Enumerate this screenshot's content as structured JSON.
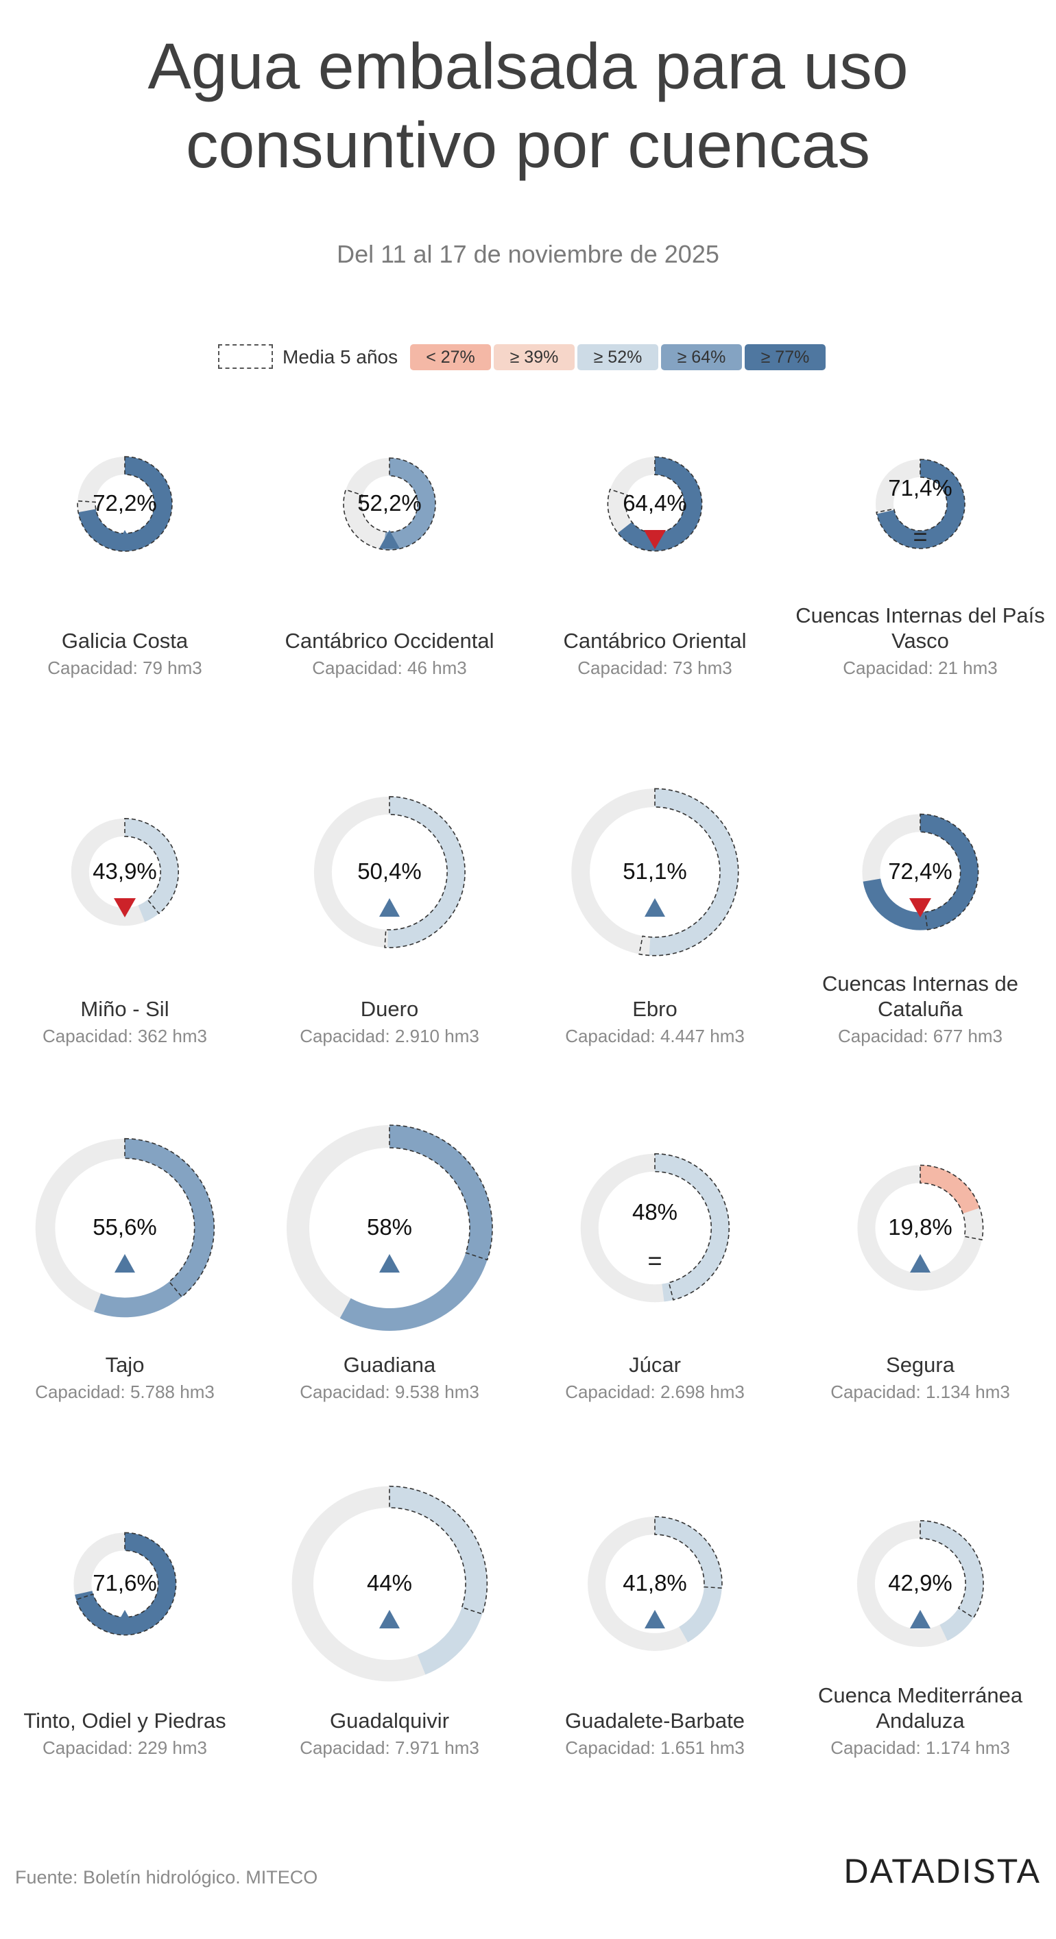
{
  "title_lines": [
    "Agua embalsada para uso",
    "consuntivo por cuencas"
  ],
  "subtitle": "Del 11 al 17 de noviembre de 2025",
  "legend": {
    "media_label": "Media 5 años",
    "bins": [
      {
        "label": "< 27%",
        "color": "#f4b8a6"
      },
      {
        "label": "≥ 39%",
        "color": "#f6d6c9"
      },
      {
        "label": "≥ 52%",
        "color": "#cddbe6"
      },
      {
        "label": "≥ 64%",
        "color": "#84a3c2"
      },
      {
        "label": "≥ 77%",
        "color": "#4f77a0"
      }
    ]
  },
  "colors": {
    "track": "#ececec",
    "up": "#4f77a0",
    "down": "#cc2229",
    "dash": "#333333"
  },
  "chart_data": {
    "type": "donut",
    "description_fields": [
      "name",
      "pct",
      "pct_label",
      "avg5",
      "trend",
      "capacity_label"
    ],
    "series": [
      {
        "name": "Galicia Costa",
        "pct": 72.2,
        "pct_label": "72,2%",
        "avg5": 76,
        "trend": "up",
        "capacity": 79,
        "capacity_label": "Capacidad: 79 hm3",
        "fill": "#4f77a0"
      },
      {
        "name": "Cantábrico Occidental",
        "pct": 52.2,
        "pct_label": "52,2%",
        "avg5": 80,
        "trend": "up",
        "capacity": 46,
        "capacity_label": "Capacidad: 46 hm3",
        "fill": "#84a3c2"
      },
      {
        "name": "Cantábrico Oriental",
        "pct": 64.4,
        "pct_label": "64,4%",
        "avg5": 80,
        "trend": "down",
        "capacity": 73,
        "capacity_label": "Capacidad: 73 hm3",
        "fill": "#4f77a0"
      },
      {
        "name": "Cuencas Internas del País Vasco",
        "pct": 71.4,
        "pct_label": "71,4%",
        "avg5": 72,
        "trend": "equal",
        "capacity": 21,
        "capacity_label": "Capacidad: 21 hm3",
        "fill": "#4f77a0"
      },
      {
        "name": "Miño - Sil",
        "pct": 43.9,
        "pct_label": "43,9%",
        "avg5": 39,
        "trend": "down",
        "capacity": 362,
        "capacity_label": "Capacidad: 362 hm3",
        "fill": "#cddbe6"
      },
      {
        "name": "Duero",
        "pct": 50.4,
        "pct_label": "50,4%",
        "avg5": 51,
        "trend": "up",
        "capacity": 2910,
        "capacity_label": "Capacidad: 2.910 hm3",
        "fill": "#cddbe6"
      },
      {
        "name": "Ebro",
        "pct": 51.1,
        "pct_label": "51,1%",
        "avg5": 53,
        "trend": "up",
        "capacity": 4447,
        "capacity_label": "Capacidad: 4.447 hm3",
        "fill": "#cddbe6"
      },
      {
        "name": "Cuencas Internas de Cataluña",
        "pct": 72.4,
        "pct_label": "72,4%",
        "avg5": 48,
        "trend": "down",
        "capacity": 677,
        "capacity_label": "Capacidad: 677 hm3",
        "fill": "#4f77a0"
      },
      {
        "name": "Tajo",
        "pct": 55.6,
        "pct_label": "55,6%",
        "avg5": 39,
        "trend": "up",
        "capacity": 5788,
        "capacity_label": "Capacidad: 5.788 hm3",
        "fill": "#84a3c2"
      },
      {
        "name": "Guadiana",
        "pct": 58,
        "pct_label": "58%",
        "avg5": 30,
        "trend": "up",
        "capacity": 9538,
        "capacity_label": "Capacidad: 9.538 hm3",
        "fill": "#84a3c2"
      },
      {
        "name": "Júcar",
        "pct": 48,
        "pct_label": "48%",
        "avg5": 46,
        "trend": "equal",
        "capacity": 2698,
        "capacity_label": "Capacidad: 2.698 hm3",
        "fill": "#cddbe6"
      },
      {
        "name": "Segura",
        "pct": 19.8,
        "pct_label": "19,8%",
        "avg5": 28,
        "trend": "up",
        "capacity": 1134,
        "capacity_label": "Capacidad: 1.134 hm3",
        "fill": "#f4b8a6"
      },
      {
        "name": "Tinto, Odiel y Piedras",
        "pct": 71.6,
        "pct_label": "71,6%",
        "avg5": 70,
        "trend": "up",
        "capacity": 229,
        "capacity_label": "Capacidad: 229 hm3",
        "fill": "#4f77a0"
      },
      {
        "name": "Guadalquivir",
        "pct": 44,
        "pct_label": "44%",
        "avg5": 30,
        "trend": "up",
        "capacity": 7971,
        "capacity_label": "Capacidad: 7.971 hm3",
        "fill": "#cddbe6"
      },
      {
        "name": "Guadalete-Barbate",
        "pct": 41.8,
        "pct_label": "41,8%",
        "avg5": 26,
        "trend": "up",
        "capacity": 1651,
        "capacity_label": "Capacidad: 1.651 hm3",
        "fill": "#cddbe6"
      },
      {
        "name": "Cuenca Mediterránea Andaluza",
        "pct": 42.9,
        "pct_label": "42,9%",
        "avg5": 34,
        "trend": "up",
        "capacity": 1174,
        "capacity_label": "Capacidad: 1.174 hm3",
        "fill": "#cddbe6"
      }
    ]
  },
  "footer": {
    "source": "Fuente: Boletín hidrológico. MITECO",
    "brand": "DATADISTA"
  }
}
